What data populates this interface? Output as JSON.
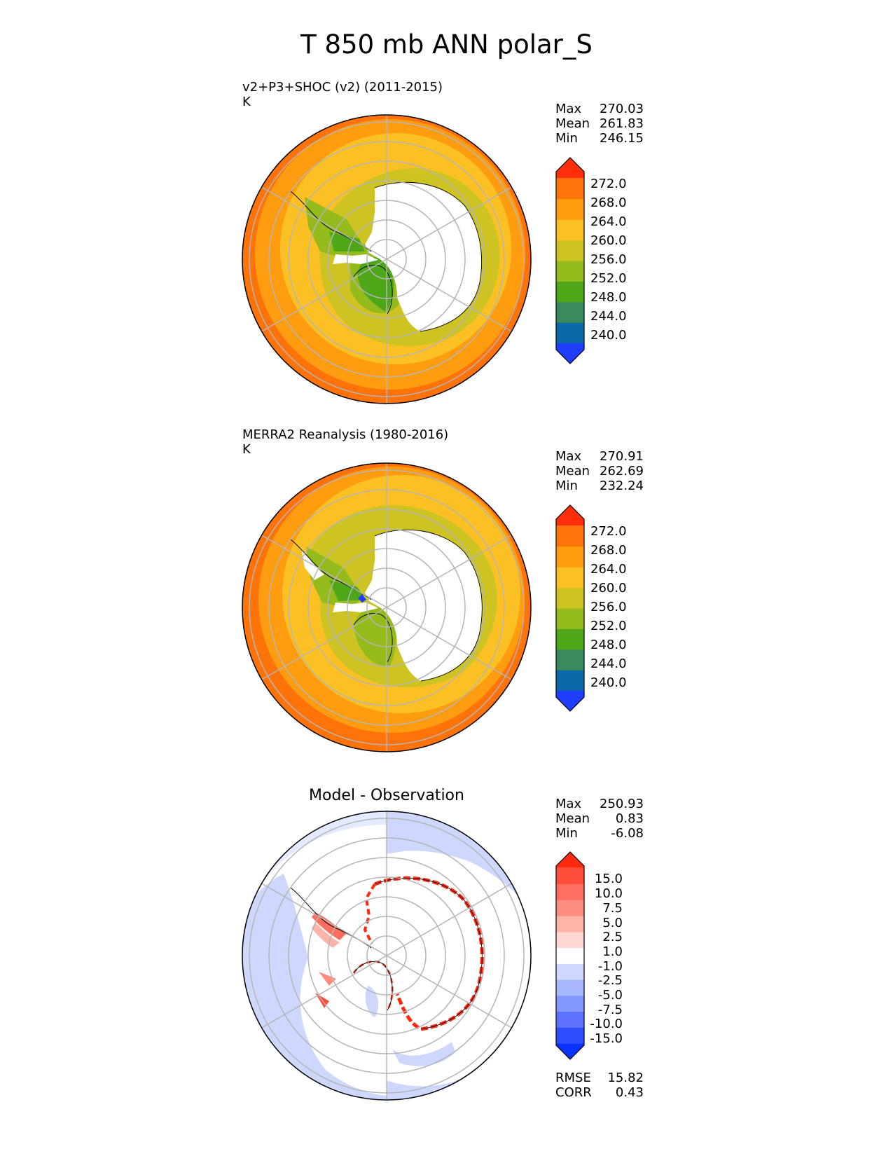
{
  "title": "T 850 mb ANN polar_S",
  "panels": [
    {
      "title": "v2+P3+SHOC (v2) (2011-2015)",
      "units": "K",
      "stats": [
        {
          "label": "Max",
          "value": "270.03"
        },
        {
          "label": "Mean",
          "value": "261.83"
        },
        {
          "label": "Min",
          "value": "246.15"
        }
      ],
      "colorbar": {
        "ticks": [
          "272.0",
          "268.0",
          "264.0",
          "260.0",
          "256.0",
          "252.0",
          "248.0",
          "244.0",
          "240.0"
        ],
        "colors": [
          "#1f3cff",
          "#0a69a8",
          "#3a8a5e",
          "#4ea719",
          "#94bb1b",
          "#cdc424",
          "#fbc124",
          "#ff9c10",
          "#ff7308",
          "#ff2f0c"
        ]
      }
    },
    {
      "title": "MERRA2 Reanalysis (1980-2016)",
      "units": "K",
      "stats": [
        {
          "label": "Max",
          "value": "270.91"
        },
        {
          "label": "Mean",
          "value": "262.69"
        },
        {
          "label": "Min",
          "value": "232.24"
        }
      ],
      "colorbar": {
        "ticks": [
          "272.0",
          "268.0",
          "264.0",
          "260.0",
          "256.0",
          "252.0",
          "248.0",
          "244.0",
          "240.0"
        ],
        "colors": [
          "#1f3cff",
          "#0a69a8",
          "#3a8a5e",
          "#4ea719",
          "#94bb1b",
          "#cdc424",
          "#fbc124",
          "#ff9c10",
          "#ff7308",
          "#ff2f0c"
        ]
      }
    },
    {
      "title": "Model - Observation",
      "stats": [
        {
          "label": "Max",
          "value": "250.93"
        },
        {
          "label": "Mean",
          "value": "0.83"
        },
        {
          "label": "Min",
          "value": "-6.08"
        }
      ],
      "metrics": [
        {
          "label": "RMSE",
          "value": "15.82"
        },
        {
          "label": "CORR",
          "value": "0.43"
        }
      ],
      "colorbar": {
        "ticks": [
          "15.0",
          "10.0",
          "7.5",
          "5.0",
          "2.5",
          "1.0",
          "-1.0",
          "-2.5",
          "-5.0",
          "-7.5",
          "-10.0",
          "-15.0"
        ],
        "colors": [
          "#0a32ff",
          "#2d4dff",
          "#5a72ff",
          "#8397ff",
          "#a7b7ff",
          "#ced8ff",
          "#ffffff",
          "#ffd6d2",
          "#ffb3a9",
          "#ff8e80",
          "#ff6e5e",
          "#ff4e3c",
          "#ff2a10"
        ]
      }
    }
  ]
}
